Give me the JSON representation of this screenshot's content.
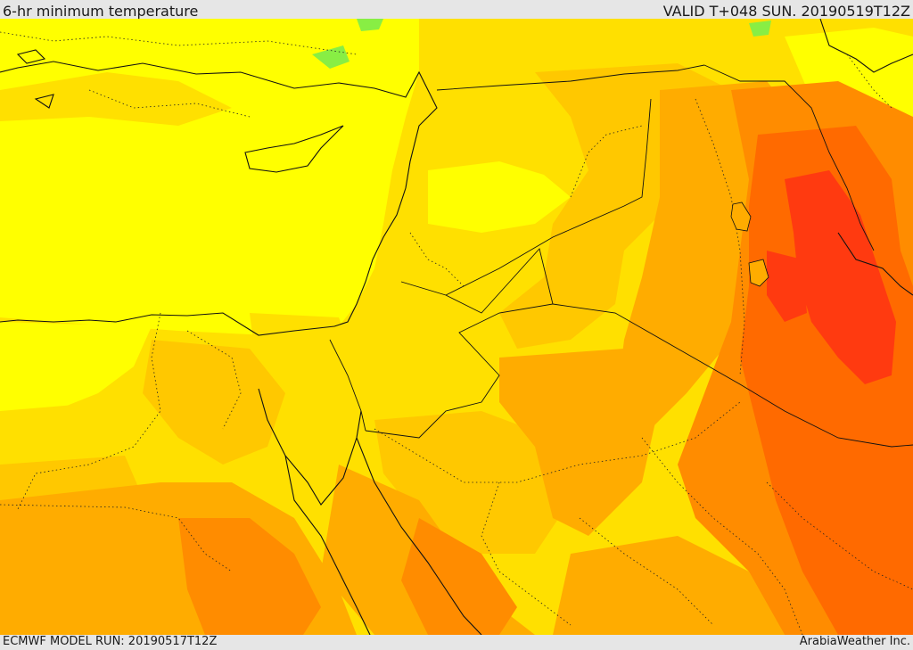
{
  "header": {
    "title": "6-hr minimum temperature",
    "valid": "VALID T+048 SUN. 20190519T12Z"
  },
  "footer": {
    "model_run": "ECMWF MODEL RUN: 20190517T12Z",
    "credit": "ArabiaWeather Inc."
  },
  "map": {
    "region": "Eastern Mediterranean / Middle East",
    "palette": {
      "lightest": "#ffff00",
      "light": "#ffe000",
      "mid": "#ffc800",
      "warm": "#ffac00",
      "orange": "#ff8c00",
      "dark_orange": "#ff6a00",
      "hot": "#ff3a10",
      "cool_green": "#88ee44"
    }
  }
}
